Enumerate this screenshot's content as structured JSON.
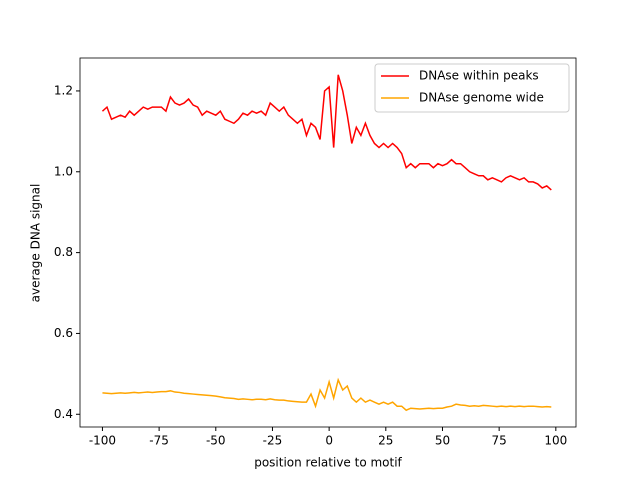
{
  "chart_data": {
    "type": "line",
    "xlabel": "position relative to motif",
    "ylabel": "average DNA signal",
    "x": [
      -100,
      -98,
      -96,
      -94,
      -92,
      -90,
      -88,
      -86,
      -84,
      -82,
      -80,
      -78,
      -76,
      -74,
      -72,
      -70,
      -68,
      -66,
      -64,
      -62,
      -60,
      -58,
      -56,
      -54,
      -52,
      -50,
      -48,
      -46,
      -44,
      -42,
      -40,
      -38,
      -36,
      -34,
      -32,
      -30,
      -28,
      -26,
      -24,
      -22,
      -20,
      -18,
      -16,
      -14,
      -12,
      -10,
      -8,
      -6,
      -4,
      -2,
      0,
      2,
      4,
      6,
      8,
      10,
      12,
      14,
      16,
      18,
      20,
      22,
      24,
      26,
      28,
      30,
      32,
      34,
      36,
      38,
      40,
      42,
      44,
      46,
      48,
      50,
      52,
      54,
      56,
      58,
      60,
      62,
      64,
      66,
      68,
      70,
      72,
      74,
      76,
      78,
      80,
      82,
      84,
      86,
      88,
      90,
      92,
      94,
      96,
      98
    ],
    "series": [
      {
        "name": "DNAse within peaks",
        "color": "#ff0000",
        "values": [
          1.15,
          1.16,
          1.13,
          1.135,
          1.14,
          1.135,
          1.15,
          1.14,
          1.15,
          1.16,
          1.155,
          1.16,
          1.16,
          1.16,
          1.15,
          1.185,
          1.17,
          1.165,
          1.17,
          1.18,
          1.165,
          1.16,
          1.14,
          1.15,
          1.145,
          1.14,
          1.15,
          1.13,
          1.125,
          1.12,
          1.13,
          1.145,
          1.14,
          1.15,
          1.145,
          1.15,
          1.14,
          1.17,
          1.16,
          1.15,
          1.16,
          1.14,
          1.13,
          1.12,
          1.13,
          1.09,
          1.12,
          1.11,
          1.08,
          1.2,
          1.21,
          1.06,
          1.24,
          1.2,
          1.14,
          1.07,
          1.11,
          1.09,
          1.12,
          1.09,
          1.07,
          1.06,
          1.07,
          1.06,
          1.07,
          1.06,
          1.045,
          1.01,
          1.02,
          1.01,
          1.02,
          1.02,
          1.02,
          1.01,
          1.02,
          1.015,
          1.02,
          1.03,
          1.02,
          1.02,
          1.01,
          1.0,
          0.995,
          0.99,
          0.99,
          0.98,
          0.985,
          0.98,
          0.975,
          0.985,
          0.99,
          0.985,
          0.98,
          0.985,
          0.975,
          0.975,
          0.97,
          0.96,
          0.965,
          0.955
        ]
      },
      {
        "name": "DNAse genome wide",
        "color": "#ffa500",
        "values": [
          0.453,
          0.452,
          0.451,
          0.452,
          0.453,
          0.452,
          0.453,
          0.454,
          0.453,
          0.454,
          0.455,
          0.454,
          0.455,
          0.456,
          0.456,
          0.458,
          0.455,
          0.454,
          0.452,
          0.451,
          0.45,
          0.449,
          0.448,
          0.447,
          0.446,
          0.445,
          0.443,
          0.441,
          0.44,
          0.439,
          0.437,
          0.438,
          0.437,
          0.436,
          0.437,
          0.437,
          0.436,
          0.438,
          0.436,
          0.435,
          0.435,
          0.433,
          0.432,
          0.431,
          0.43,
          0.43,
          0.45,
          0.42,
          0.46,
          0.44,
          0.48,
          0.44,
          0.485,
          0.46,
          0.47,
          0.44,
          0.43,
          0.44,
          0.43,
          0.435,
          0.43,
          0.425,
          0.43,
          0.425,
          0.43,
          0.42,
          0.42,
          0.41,
          0.415,
          0.414,
          0.413,
          0.414,
          0.415,
          0.414,
          0.415,
          0.415,
          0.418,
          0.42,
          0.425,
          0.423,
          0.422,
          0.42,
          0.421,
          0.42,
          0.422,
          0.421,
          0.42,
          0.419,
          0.42,
          0.419,
          0.42,
          0.419,
          0.42,
          0.419,
          0.42,
          0.42,
          0.419,
          0.418,
          0.419,
          0.418
        ]
      }
    ],
    "xlim": [
      -109.9,
      108.9
    ],
    "ylim": [
      0.3685,
      1.2815
    ],
    "xticks": [
      -100,
      -75,
      -50,
      -25,
      0,
      25,
      50,
      75,
      100
    ],
    "yticks": [
      {
        "value": 0.4,
        "label": "0.4"
      },
      {
        "value": 0.6,
        "label": "0.6"
      },
      {
        "value": 0.8,
        "label": "0.8"
      },
      {
        "value": 1.0,
        "label": "1.0"
      },
      {
        "value": 1.2,
        "label": "1.2"
      }
    ],
    "legend": "upper right"
  }
}
